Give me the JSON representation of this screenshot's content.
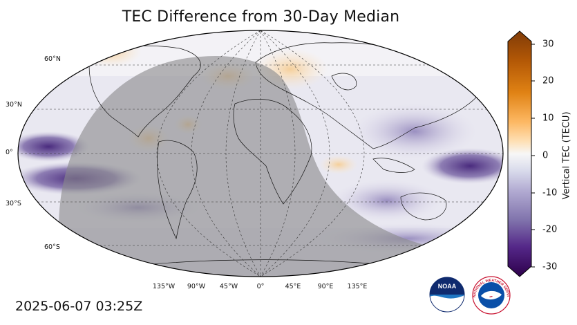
{
  "title": "TEC Difference from 30-Day Median",
  "timestamp": "2025-06-07 03:25Z",
  "lat_labels": [
    "60°N",
    "30°N",
    "0°",
    "30°S",
    "60°S"
  ],
  "lon_labels": [
    "135°W",
    "90°W",
    "45°W",
    "0°",
    "45°E",
    "90°E",
    "135°E"
  ],
  "colorbar": {
    "label": "Vertical TEC (TECU)",
    "ticks": [
      "30",
      "20",
      "10",
      "0",
      "-10",
      "-20",
      "-30"
    ],
    "min": -30,
    "max": 30
  },
  "logos": {
    "noaa": "NOAA",
    "nws": "NATIONAL WEATHER SERVICE"
  },
  "colors": {
    "positive": "#c9741a",
    "negative": "#5b3f8f",
    "neutral": "#f2f2f5",
    "night_overlay": "#9a9a9a"
  }
}
